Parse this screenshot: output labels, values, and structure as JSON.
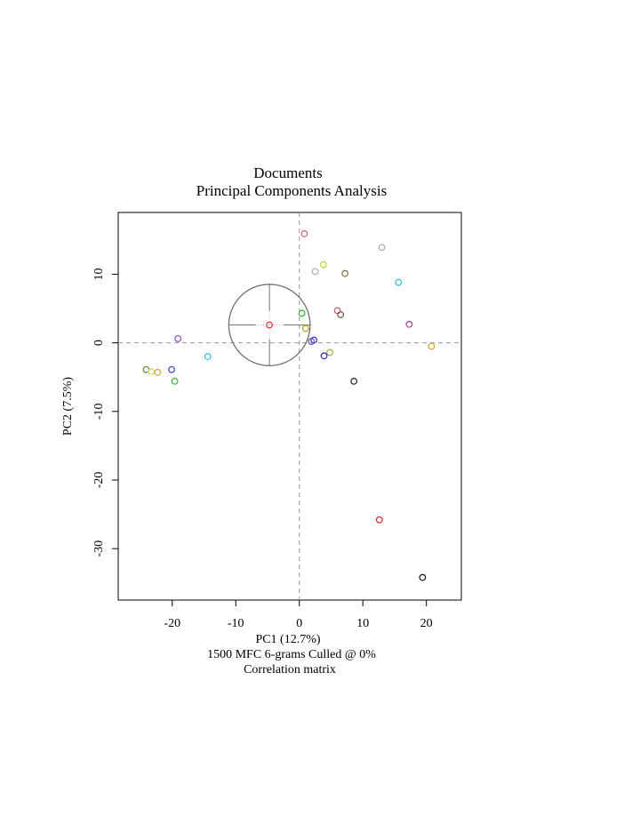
{
  "chart_data": {
    "type": "scatter",
    "title": "Documents",
    "subtitle": "Principal Components Analysis",
    "xlabel": "PC1 (12.7%)",
    "ylabel": "PC2 (7.5%)",
    "caption_lines": [
      "1500 MFC 6-grams Culled @ 0%",
      "Correlation matrix"
    ],
    "xlim": [
      -28.5,
      25.5
    ],
    "ylim": [
      -37.5,
      19
    ],
    "x_ticks": [
      -20,
      -10,
      0,
      10,
      20
    ],
    "x_tick_labels": [
      "-20",
      "-10",
      "0",
      "10",
      "20"
    ],
    "y_ticks": [
      -30,
      -20,
      -10,
      0,
      10
    ],
    "y_tick_labels": [
      "-30",
      "-20",
      "-10",
      "0",
      "10"
    ],
    "grid": false,
    "reference_lines": {
      "x": 0,
      "y": 0,
      "style": "dashed",
      "color": "#9a9a9a"
    },
    "points": [
      {
        "x": 0.8,
        "y": 15.9,
        "color": "#d0607a"
      },
      {
        "x": 13.0,
        "y": 13.9,
        "color": "#a8a8a8"
      },
      {
        "x": 3.8,
        "y": 11.4,
        "color": "#b5d334"
      },
      {
        "x": 2.5,
        "y": 10.4,
        "color": "#b0b0b0"
      },
      {
        "x": 7.2,
        "y": 10.1,
        "color": "#7a6d3c"
      },
      {
        "x": 15.6,
        "y": 8.8,
        "color": "#30b8c8"
      },
      {
        "x": 6.0,
        "y": 4.7,
        "color": "#b55068"
      },
      {
        "x": 6.5,
        "y": 4.1,
        "color": "#6b5a3a"
      },
      {
        "x": 0.4,
        "y": 4.3,
        "color": "#2bbb2b"
      },
      {
        "x": 17.3,
        "y": 2.7,
        "color": "#9b3b8f"
      },
      {
        "x": -4.7,
        "y": 2.6,
        "color": "#e0303a"
      },
      {
        "x": 1.0,
        "y": 2.1,
        "color": "#b0a020"
      },
      {
        "x": -19.1,
        "y": 0.6,
        "color": "#a040c8"
      },
      {
        "x": 2.3,
        "y": 0.4,
        "color": "#3a30c0"
      },
      {
        "x": 1.9,
        "y": 0.2,
        "color": "#6a40c0"
      },
      {
        "x": 20.8,
        "y": -0.5,
        "color": "#e0a030"
      },
      {
        "x": 4.8,
        "y": -1.4,
        "color": "#a0b040"
      },
      {
        "x": 3.9,
        "y": -1.9,
        "color": "#2020a0"
      },
      {
        "x": -14.4,
        "y": -2.0,
        "color": "#30c0d0"
      },
      {
        "x": -24.1,
        "y": -3.9,
        "color": "#5a8a30"
      },
      {
        "x": -20.1,
        "y": -3.9,
        "color": "#3040c0"
      },
      {
        "x": -23.3,
        "y": -4.2,
        "color": "#d0d060"
      },
      {
        "x": -22.3,
        "y": -4.3,
        "color": "#d0a040"
      },
      {
        "x": -19.6,
        "y": -5.6,
        "color": "#30c030"
      },
      {
        "x": 8.6,
        "y": -5.6,
        "color": "#202020"
      },
      {
        "x": 12.6,
        "y": -25.8,
        "color": "#d02020"
      },
      {
        "x": 19.4,
        "y": -34.2,
        "color": "#101010"
      }
    ],
    "target_circle": {
      "center_x": -4.7,
      "center_y": 2.6,
      "radius": 6.4,
      "color": "#707070"
    }
  }
}
